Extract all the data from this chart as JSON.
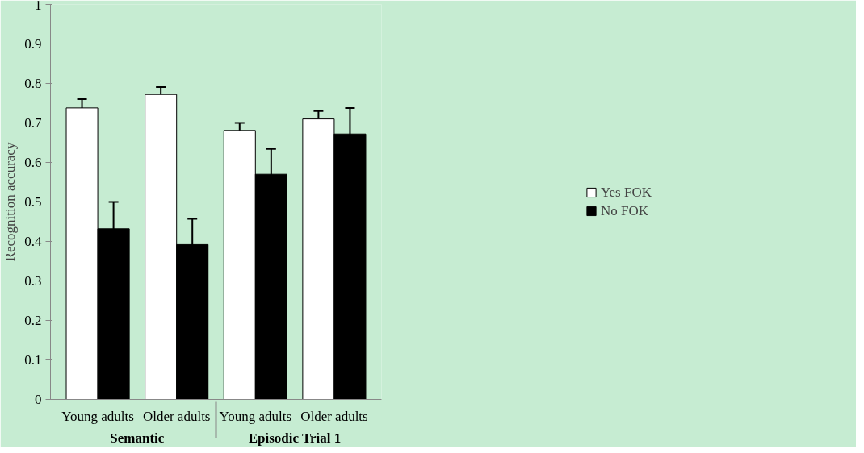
{
  "chart_data": {
    "type": "bar",
    "ylabel": "Recognition accuracy",
    "categories": [
      "Young adults",
      "Older adults",
      "Young adults",
      "Older adults"
    ],
    "annotations": [
      "Semantic",
      "Episodic Trial 1"
    ],
    "series": [
      {
        "name": "Yes FOK",
        "color": "#ffffff",
        "values": [
          0.738,
          0.772,
          0.681,
          0.71
        ],
        "errors": [
          0.022,
          0.019,
          0.019,
          0.02
        ]
      },
      {
        "name": "No FOK",
        "color": "#000000",
        "values": [
          0.432,
          0.392,
          0.57,
          0.672
        ],
        "errors": [
          0.068,
          0.065,
          0.064,
          0.066
        ]
      }
    ],
    "ylim": [
      0,
      1
    ],
    "yticks": [
      0,
      {
        "value": 0.1,
        "label": "0.1"
      },
      {
        "value": 0.2,
        "label": "0.2"
      },
      {
        "value": 0.3,
        "label": "0.3"
      },
      {
        "value": 0.4,
        "label": "0.4"
      },
      {
        "value": 0.5,
        "label": "0.5"
      },
      {
        "value": 0.6,
        "label": "0.6"
      },
      {
        "value": 0.7,
        "label": "0.7"
      },
      {
        "value": 0.8,
        "label": "0.8"
      },
      {
        "value": 0.9,
        "label": "0.9"
      },
      1
    ],
    "grid": false,
    "legend": "right"
  }
}
